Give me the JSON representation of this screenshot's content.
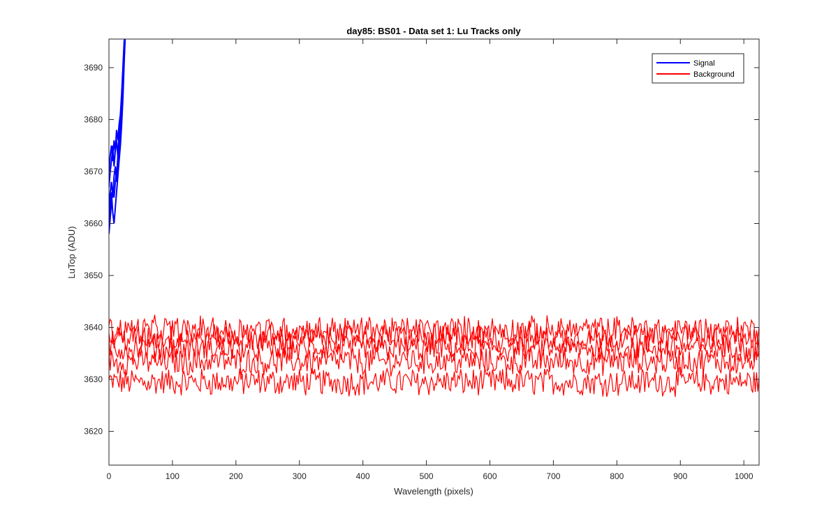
{
  "chart_data": {
    "type": "line",
    "title": "day85: BS01 - Data set 1: Lu Tracks only",
    "xlabel": "Wavelength (pixels)",
    "ylabel": "LuTop (ADU)",
    "xlim": [
      0,
      1024
    ],
    "ylim": [
      3613.5,
      3695.5
    ],
    "xticks": [
      0,
      100,
      200,
      300,
      400,
      500,
      600,
      700,
      800,
      900,
      1000
    ],
    "yticks": [
      3620,
      3630,
      3640,
      3650,
      3660,
      3670,
      3680,
      3690
    ],
    "grid": false,
    "legend_position": "top-right",
    "colors": {
      "signal": "#0000ff",
      "background": "#ff0000"
    },
    "series": [
      {
        "name": "Signal",
        "color": "#0000ff",
        "description_lines": 5,
        "x": [
          0,
          2,
          4,
          6,
          8,
          10,
          12,
          14,
          16,
          18,
          20,
          22,
          24,
          26
        ],
        "lines": [
          [
            3658,
            3661,
            3664,
            3667,
            3665,
            3668,
            3670,
            3672,
            3674,
            3677,
            3680,
            3685,
            3692,
            3697
          ],
          [
            3663,
            3666,
            3668,
            3665,
            3669,
            3671,
            3668,
            3673,
            3675,
            3678,
            3682,
            3687,
            3693,
            3697
          ],
          [
            3667,
            3670,
            3672,
            3675,
            3671,
            3674,
            3676,
            3673,
            3677,
            3679,
            3683,
            3688,
            3694,
            3697
          ],
          [
            3670,
            3673,
            3675,
            3672,
            3676,
            3674,
            3678,
            3676,
            3679,
            3681,
            3685,
            3690,
            3695,
            3697
          ],
          [
            3660,
            3664,
            3666,
            3662,
            3660,
            3663,
            3666,
            3669,
            3672,
            3675,
            3679,
            3684,
            3691,
            3697
          ]
        ]
      },
      {
        "name": "Background",
        "color": "#ff0000",
        "lines": [
          {
            "mean": 3629.5,
            "amp": 2.4
          },
          {
            "mean": 3633.5,
            "amp": 2.4
          },
          {
            "mean": 3636.0,
            "amp": 2.4
          },
          {
            "mean": 3638.0,
            "amp": 2.4
          },
          {
            "mean": 3639.5,
            "amp": 2.4
          }
        ]
      }
    ]
  }
}
